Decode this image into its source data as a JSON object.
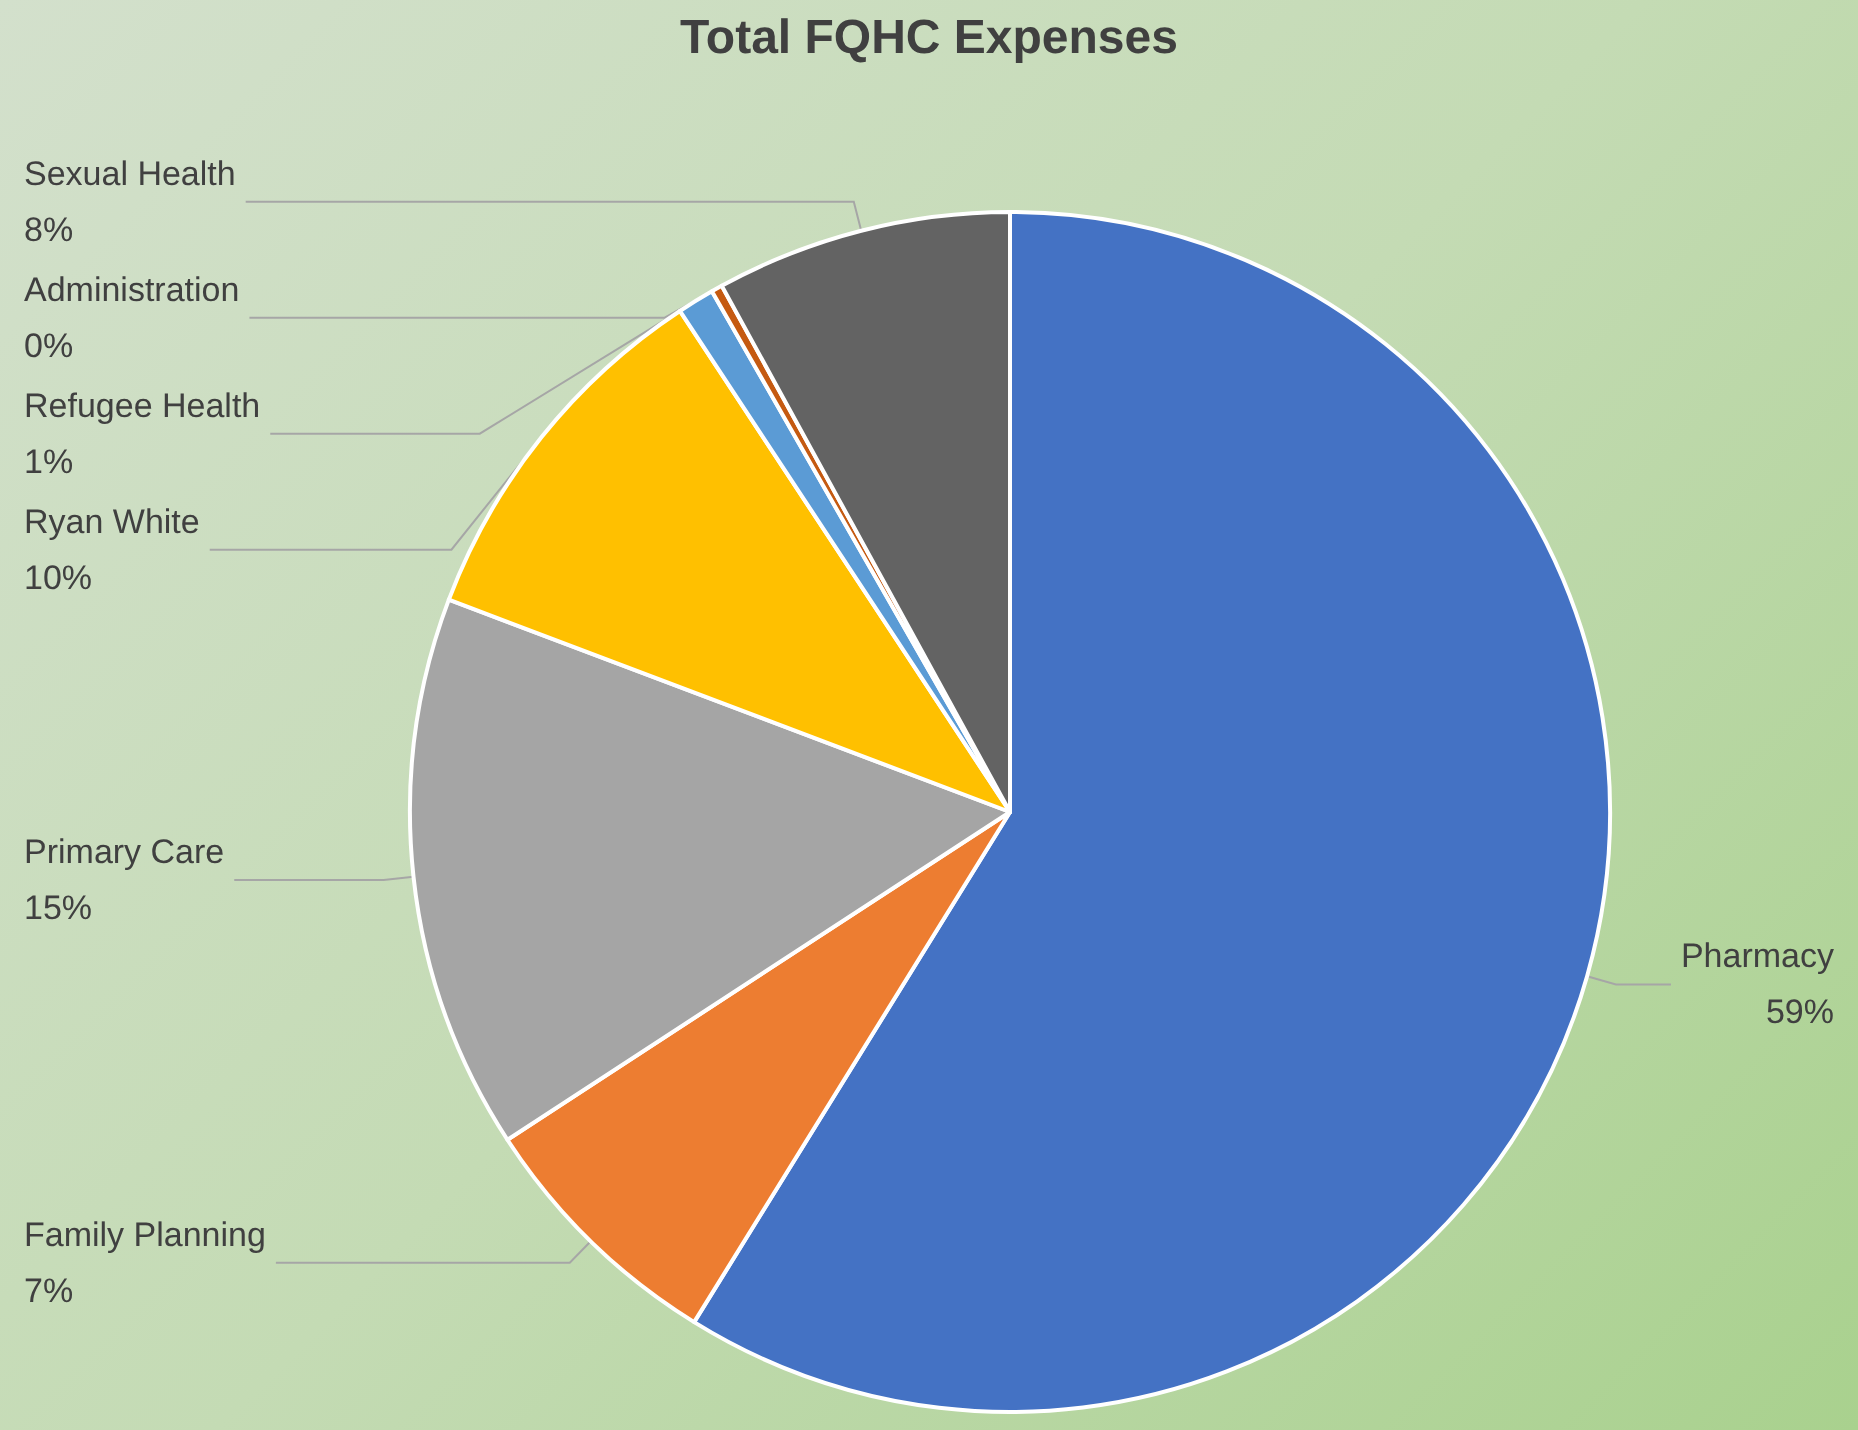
{
  "chart_data": {
    "type": "pie",
    "title": "Total FQHC Expenses",
    "categories": [
      "Pharmacy",
      "Family Planning",
      "Primary Care",
      "Ryan White",
      "Refugee Health",
      "Administration",
      "Sexual Health"
    ],
    "values": [
      59,
      7,
      15,
      10,
      1,
      0.3,
      8
    ],
    "colors": [
      "#4472c4",
      "#ed7d31",
      "#a5a5a5",
      "#ffc000",
      "#5b9bd5",
      "#c55a11",
      "#636363"
    ],
    "value_labels": [
      "59%",
      "7%",
      "15%",
      "10%",
      "1%",
      "0%",
      "8%"
    ],
    "legend": false
  }
}
